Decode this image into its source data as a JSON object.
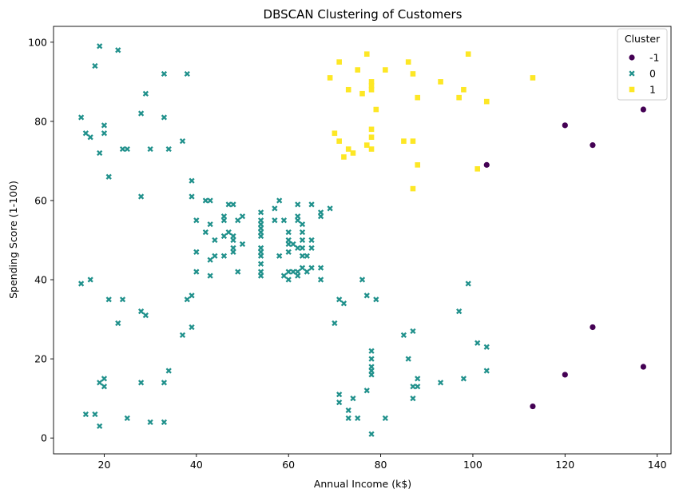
{
  "chart_data": {
    "type": "scatter",
    "title": "DBSCAN Clustering of Customers",
    "xlabel": "Annual Income (k$)",
    "ylabel": "Spending Score (1-100)",
    "xlim": [
      9,
      143
    ],
    "ylim": [
      -4,
      104
    ],
    "xticks": [
      20,
      40,
      60,
      80,
      100,
      120,
      140
    ],
    "yticks": [
      0,
      20,
      40,
      60,
      80,
      100
    ],
    "grid": false,
    "legend": {
      "title": "Cluster",
      "placement": "top-right"
    },
    "series": [
      {
        "name": "-1",
        "marker": "circle",
        "color": "#440154",
        "points": [
          [
            103,
            69
          ],
          [
            113,
            8
          ],
          [
            120,
            79
          ],
          [
            120,
            16
          ],
          [
            126,
            74
          ],
          [
            126,
            28
          ],
          [
            137,
            83
          ],
          [
            137,
            18
          ]
        ]
      },
      {
        "name": "0",
        "marker": "x",
        "color": "#21918c",
        "points": [
          [
            15,
            39
          ],
          [
            15,
            81
          ],
          [
            16,
            6
          ],
          [
            16,
            77
          ],
          [
            17,
            40
          ],
          [
            17,
            76
          ],
          [
            18,
            6
          ],
          [
            18,
            94
          ],
          [
            19,
            3
          ],
          [
            19,
            72
          ],
          [
            19,
            14
          ],
          [
            19,
            99
          ],
          [
            20,
            15
          ],
          [
            20,
            77
          ],
          [
            20,
            13
          ],
          [
            20,
            79
          ],
          [
            21,
            35
          ],
          [
            21,
            66
          ],
          [
            23,
            29
          ],
          [
            23,
            98
          ],
          [
            24,
            35
          ],
          [
            24,
            73
          ],
          [
            25,
            5
          ],
          [
            25,
            73
          ],
          [
            28,
            14
          ],
          [
            28,
            82
          ],
          [
            28,
            32
          ],
          [
            28,
            61
          ],
          [
            29,
            31
          ],
          [
            29,
            87
          ],
          [
            30,
            4
          ],
          [
            30,
            73
          ],
          [
            33,
            4
          ],
          [
            33,
            92
          ],
          [
            33,
            14
          ],
          [
            33,
            81
          ],
          [
            34,
            17
          ],
          [
            34,
            73
          ],
          [
            37,
            26
          ],
          [
            37,
            75
          ],
          [
            38,
            35
          ],
          [
            38,
            92
          ],
          [
            39,
            36
          ],
          [
            39,
            61
          ],
          [
            39,
            28
          ],
          [
            39,
            65
          ],
          [
            40,
            55
          ],
          [
            40,
            47
          ],
          [
            40,
            42
          ],
          [
            42,
            52
          ],
          [
            42,
            60
          ],
          [
            43,
            54
          ],
          [
            43,
            60
          ],
          [
            43,
            45
          ],
          [
            43,
            41
          ],
          [
            44,
            50
          ],
          [
            44,
            46
          ],
          [
            46,
            51
          ],
          [
            46,
            46
          ],
          [
            46,
            56
          ],
          [
            46,
            55
          ],
          [
            47,
            52
          ],
          [
            47,
            59
          ],
          [
            48,
            51
          ],
          [
            48,
            59
          ],
          [
            48,
            50
          ],
          [
            48,
            48
          ],
          [
            48,
            47
          ],
          [
            49,
            55
          ],
          [
            49,
            42
          ],
          [
            50,
            49
          ],
          [
            50,
            56
          ],
          [
            54,
            47
          ],
          [
            54,
            54
          ],
          [
            54,
            53
          ],
          [
            54,
            48
          ],
          [
            54,
            52
          ],
          [
            54,
            42
          ],
          [
            54,
            51
          ],
          [
            54,
            55
          ],
          [
            54,
            41
          ],
          [
            54,
            44
          ],
          [
            54,
            57
          ],
          [
            54,
            46
          ],
          [
            57,
            58
          ],
          [
            57,
            55
          ],
          [
            58,
            60
          ],
          [
            58,
            46
          ],
          [
            59,
            55
          ],
          [
            59,
            41
          ],
          [
            60,
            49
          ],
          [
            60,
            40
          ],
          [
            60,
            42
          ],
          [
            60,
            52
          ],
          [
            60,
            47
          ],
          [
            60,
            50
          ],
          [
            61,
            42
          ],
          [
            61,
            49
          ],
          [
            62,
            41
          ],
          [
            62,
            48
          ],
          [
            62,
            59
          ],
          [
            62,
            55
          ],
          [
            62,
            56
          ],
          [
            62,
            42
          ],
          [
            63,
            50
          ],
          [
            63,
            46
          ],
          [
            63,
            43
          ],
          [
            63,
            48
          ],
          [
            63,
            52
          ],
          [
            63,
            54
          ],
          [
            64,
            42
          ],
          [
            64,
            46
          ],
          [
            65,
            48
          ],
          [
            65,
            50
          ],
          [
            65,
            43
          ],
          [
            65,
            59
          ],
          [
            67,
            43
          ],
          [
            67,
            57
          ],
          [
            67,
            56
          ],
          [
            67,
            40
          ],
          [
            69,
            58
          ],
          [
            70,
            29
          ],
          [
            71,
            11
          ],
          [
            71,
            9
          ],
          [
            71,
            35
          ],
          [
            72,
            34
          ],
          [
            73,
            5
          ],
          [
            73,
            7
          ],
          [
            74,
            10
          ],
          [
            75,
            5
          ],
          [
            76,
            40
          ],
          [
            77,
            12
          ],
          [
            77,
            36
          ],
          [
            78,
            22
          ],
          [
            78,
            17
          ],
          [
            78,
            20
          ],
          [
            78,
            16
          ],
          [
            78,
            1
          ],
          [
            78,
            18
          ],
          [
            79,
            35
          ],
          [
            81,
            5
          ],
          [
            85,
            26
          ],
          [
            86,
            20
          ],
          [
            87,
            27
          ],
          [
            87,
            13
          ],
          [
            87,
            10
          ],
          [
            88,
            13
          ],
          [
            88,
            15
          ],
          [
            93,
            14
          ],
          [
            97,
            32
          ],
          [
            98,
            15
          ],
          [
            99,
            39
          ],
          [
            101,
            24
          ],
          [
            103,
            17
          ],
          [
            103,
            23
          ]
        ]
      },
      {
        "name": "1",
        "marker": "square",
        "color": "#fde725",
        "points": [
          [
            69,
            91
          ],
          [
            70,
            77
          ],
          [
            71,
            95
          ],
          [
            71,
            75
          ],
          [
            72,
            71
          ],
          [
            73,
            88
          ],
          [
            73,
            73
          ],
          [
            74,
            72
          ],
          [
            75,
            93
          ],
          [
            76,
            87
          ],
          [
            77,
            97
          ],
          [
            77,
            74
          ],
          [
            78,
            90
          ],
          [
            78,
            88
          ],
          [
            78,
            76
          ],
          [
            78,
            89
          ],
          [
            78,
            78
          ],
          [
            78,
            73
          ],
          [
            79,
            83
          ],
          [
            81,
            93
          ],
          [
            85,
            75
          ],
          [
            86,
            95
          ],
          [
            87,
            63
          ],
          [
            87,
            75
          ],
          [
            87,
            92
          ],
          [
            88,
            86
          ],
          [
            88,
            69
          ],
          [
            93,
            90
          ],
          [
            97,
            86
          ],
          [
            98,
            88
          ],
          [
            99,
            97
          ],
          [
            101,
            68
          ],
          [
            103,
            85
          ],
          [
            113,
            91
          ]
        ]
      }
    ]
  }
}
